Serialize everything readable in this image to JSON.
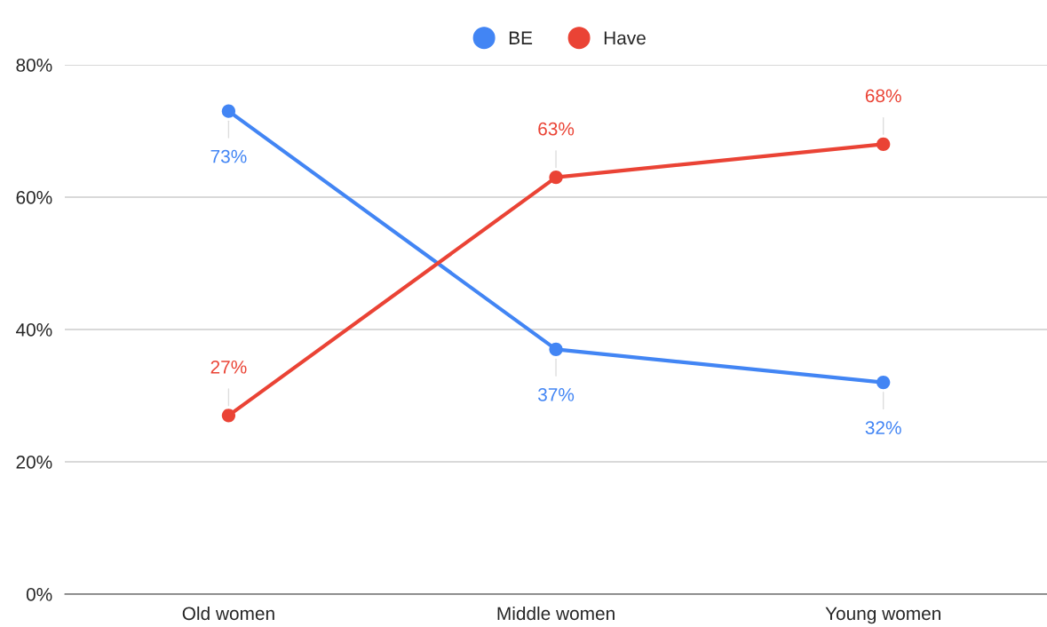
{
  "chart_data": {
    "type": "line",
    "categories": [
      "Old women",
      "Middle women",
      "Young women"
    ],
    "series": [
      {
        "name": "BE",
        "color": "#4285f4",
        "values": [
          73,
          37,
          32
        ],
        "value_labels": [
          "73%",
          "37%",
          "32%"
        ]
      },
      {
        "name": "Have",
        "color": "#ea4335",
        "values": [
          27,
          63,
          68
        ],
        "value_labels": [
          "27%",
          "63%",
          "68%"
        ]
      }
    ],
    "ylim": [
      0,
      80
    ],
    "yticks": [
      {
        "value": 0,
        "label": "0%"
      },
      {
        "value": 20,
        "label": "20%"
      },
      {
        "value": 40,
        "label": "40%"
      },
      {
        "value": 60,
        "label": "60%"
      },
      {
        "value": 80,
        "label": "80%"
      }
    ],
    "grid": "y",
    "legend": "top",
    "marker": "circle",
    "line_style": "solid"
  }
}
